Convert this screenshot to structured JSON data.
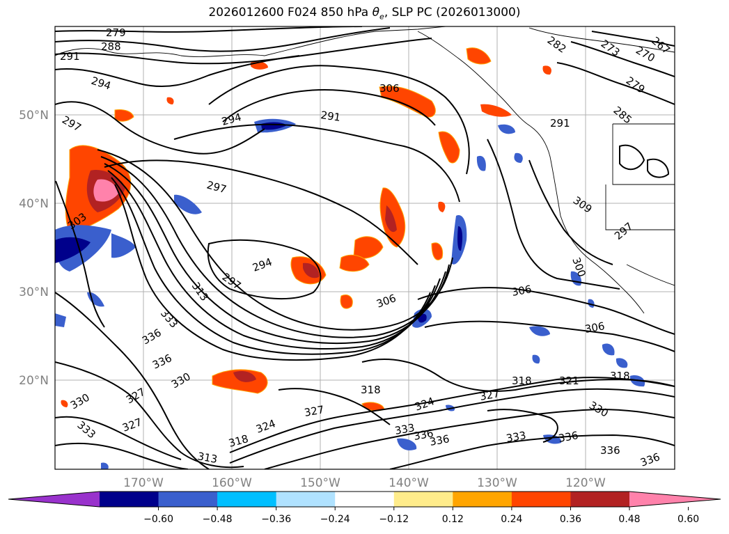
{
  "title_main": "2026012600 F024 850 hPa ",
  "title_var": "θ",
  "title_var_sub": "e",
  "title_rest": ", SLP PC (2026013000)",
  "lat_labels": [
    "50°N",
    "40°N",
    "30°N",
    "20°N"
  ],
  "lon_labels": [
    "170°W",
    "160°W",
    "150°W",
    "140°W",
    "130°W",
    "120°W"
  ],
  "contour_labels": [
    "279",
    "288",
    "291",
    "294",
    "297",
    "297",
    "294",
    "291",
    "306",
    "294",
    "297",
    "303",
    "313",
    "333",
    "336",
    "336",
    "330",
    "327",
    "330",
    "333",
    "327",
    "313",
    "318",
    "324",
    "327",
    "318",
    "324",
    "327",
    "333",
    "336",
    "336",
    "333",
    "336",
    "336",
    "330",
    "336",
    "318",
    "321",
    "318",
    "306",
    "306",
    "306",
    "300",
    "309",
    "297",
    "291",
    "273",
    "270",
    "267",
    "279",
    "285",
    "282"
  ],
  "colorbar": {
    "colors": [
      "#9932CC",
      "#00008B",
      "#3A5FCD",
      "#00BFFF",
      "#B0E2FF",
      "#FFFFFF",
      "#FFEC8B",
      "#FFA500",
      "#FF4500",
      "#B22222",
      "#FF82AB"
    ],
    "ticks": [
      "−0.60",
      "−0.48",
      "−0.36",
      "−0.24",
      "−0.12",
      "0.12",
      "0.24",
      "0.36",
      "0.48",
      "0.60"
    ]
  }
}
